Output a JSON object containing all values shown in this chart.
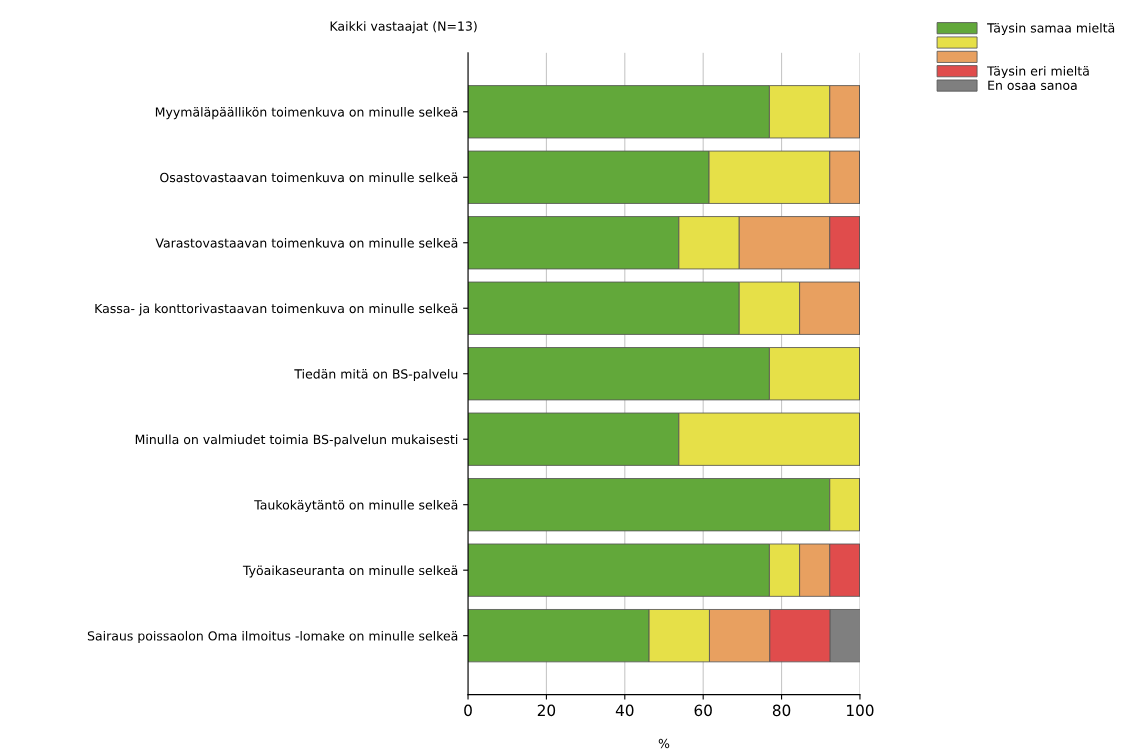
{
  "chart_data": {
    "type": "bar",
    "orientation": "horizontal",
    "stacked": true,
    "title": "Kaikki vastaajat (N=13)",
    "xlabel": "%",
    "categories": [
      "Myymäläpäällikön toimenkuva on minulle selkeä",
      "Osastovastaavan toimenkuva on minulle selkeä",
      "Varastovastaavan toimenkuva on minulle selkeä",
      "Kassa- ja konttorivastaavan toimenkuva on minulle selkeä",
      "Tiedän mitä on BS-palvelu",
      "Minulla on valmiudet toimia BS-palvelun mukaisesti",
      "Taukokäytäntö on minulle selkeä",
      "Työaikaseuranta on minulle selkeä",
      "Sairaus poissaolon Oma ilmoitus -lomake on minulle selkeä"
    ],
    "series": [
      {
        "name": "Täysin samaa mieltä",
        "color": "#62a83a",
        "values": [
          76.9,
          61.5,
          53.8,
          69.2,
          76.9,
          53.8,
          92.3,
          76.9,
          46.2
        ]
      },
      {
        "color": "#e6e048",
        "values": [
          15.4,
          30.8,
          15.4,
          15.4,
          23.1,
          46.2,
          7.7,
          7.7,
          15.4
        ]
      },
      {
        "color": "#e8a060",
        "values": [
          7.7,
          7.7,
          23.1,
          15.4,
          0,
          0,
          0,
          7.7,
          15.4
        ]
      },
      {
        "name": "Täysin eri mieltä",
        "color": "#e04c4c",
        "values": [
          0,
          0,
          7.7,
          0,
          0,
          0,
          0,
          7.7,
          15.4
        ]
      },
      {
        "name": "En osaa sanoa",
        "color": "#7f7f7f",
        "values": [
          0,
          0,
          0,
          0,
          0,
          0,
          0,
          0,
          7.7
        ]
      }
    ],
    "xlim": [
      0,
      100
    ],
    "xticks": [
      0,
      20,
      40,
      60,
      80,
      100
    ],
    "grid": "x",
    "legend": "top right"
  }
}
